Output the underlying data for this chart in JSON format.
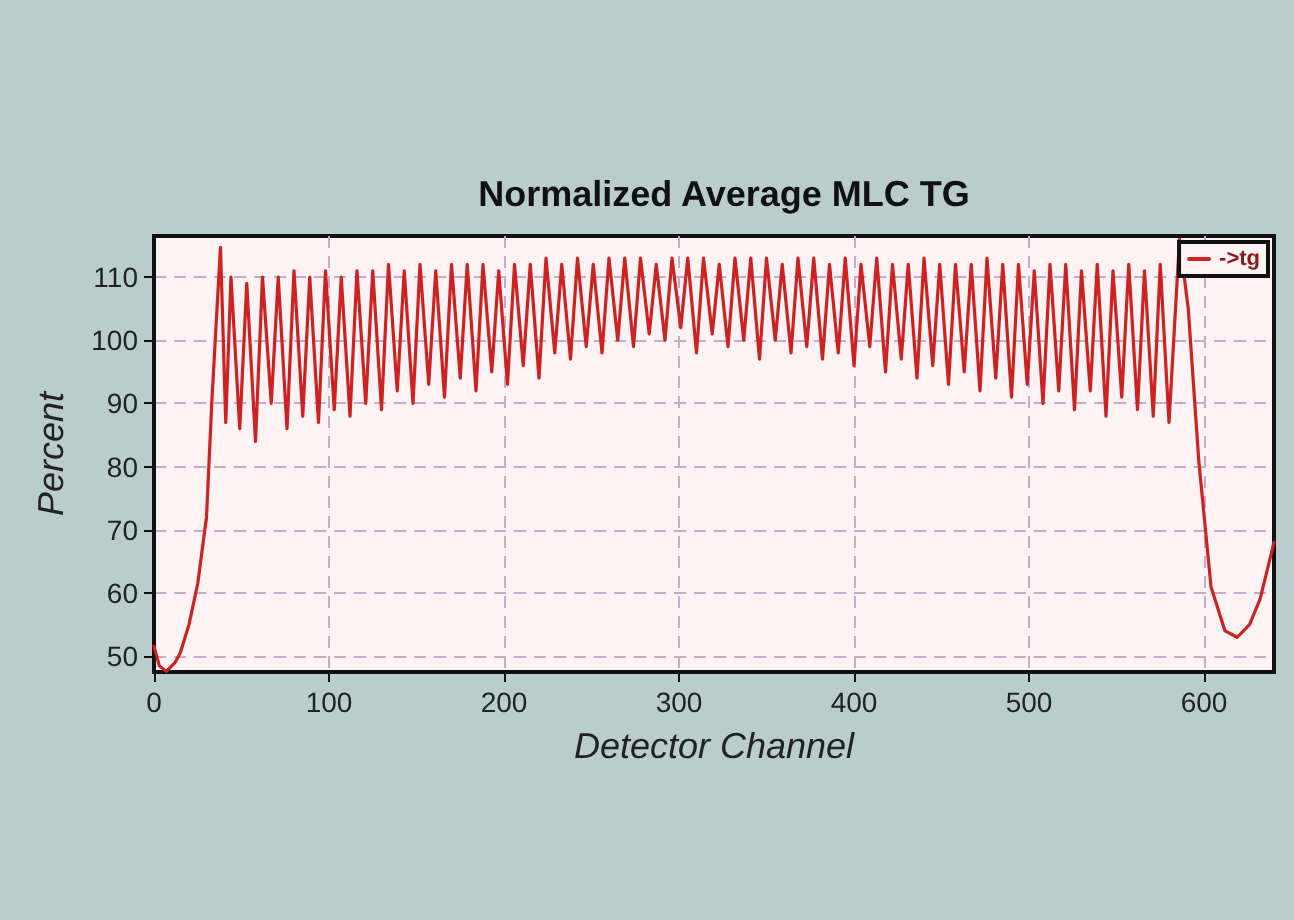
{
  "chart_data": {
    "type": "line",
    "title": "Normalized Average MLC TG",
    "xlabel": "Detector Channel",
    "ylabel": "Percent",
    "xlim": [
      0,
      640
    ],
    "xticks": [
      0,
      100,
      200,
      300,
      400,
      500,
      600
    ],
    "ylim": [
      47.5,
      116.5
    ],
    "yticks": [
      50,
      60,
      70,
      80,
      90,
      100,
      110
    ],
    "grid": true,
    "legend": "top right",
    "x": [
      0,
      3,
      7,
      12,
      15,
      20,
      25,
      30,
      33,
      36,
      38,
      41,
      44,
      49,
      53,
      58,
      62,
      67,
      71,
      76,
      80,
      85,
      89,
      94,
      98,
      103,
      107,
      112,
      116,
      121,
      125,
      130,
      134,
      139,
      143,
      148,
      152,
      157,
      161,
      166,
      170,
      175,
      179,
      184,
      188,
      193,
      197,
      202,
      206,
      211,
      215,
      220,
      224,
      229,
      233,
      238,
      242,
      247,
      251,
      256,
      260,
      265,
      269,
      274,
      278,
      283,
      287,
      292,
      296,
      301,
      305,
      310,
      314,
      319,
      323,
      328,
      332,
      337,
      341,
      346,
      350,
      355,
      359,
      364,
      368,
      373,
      377,
      382,
      386,
      391,
      395,
      400,
      404,
      409,
      413,
      418,
      422,
      427,
      431,
      436,
      440,
      445,
      449,
      454,
      458,
      463,
      467,
      472,
      476,
      481,
      485,
      490,
      494,
      499,
      503,
      508,
      512,
      517,
      521,
      526,
      530,
      535,
      539,
      544,
      548,
      553,
      557,
      562,
      566,
      571,
      575,
      580,
      586,
      591,
      597,
      604,
      612,
      619,
      626,
      632,
      640
    ],
    "series": [
      {
        "name": "->tg",
        "color": "#cc2222",
        "values": [
          51.6,
          48.5,
          47.6,
          49,
          50.5,
          55,
          61.5,
          72,
          90,
          105,
          114.7,
          87,
          110,
          86,
          109,
          84,
          110,
          90,
          110,
          86,
          111,
          88,
          110,
          87,
          111,
          89,
          110,
          88,
          111,
          90,
          111,
          89,
          112,
          92,
          111,
          90,
          112,
          93,
          111,
          91,
          112,
          94,
          112,
          92,
          112,
          95,
          111,
          93,
          112,
          96,
          112,
          94,
          113,
          98,
          112,
          97,
          113,
          99,
          112,
          98,
          113,
          100,
          113,
          99,
          113,
          101,
          112,
          100,
          113,
          102,
          113,
          98,
          113,
          101,
          112,
          99,
          113,
          100,
          113,
          97,
          113,
          100,
          112,
          98,
          113,
          99,
          113,
          97,
          112,
          98,
          113,
          96,
          112,
          99,
          113,
          95,
          112,
          97,
          112,
          94,
          113,
          96,
          112,
          93,
          112,
          95,
          112,
          92,
          113,
          94,
          112,
          91,
          112,
          93,
          111,
          90,
          112,
          92,
          112,
          89,
          111,
          92,
          112,
          88,
          111,
          91,
          112,
          89,
          111,
          88,
          112,
          87,
          116,
          105,
          81,
          61,
          54,
          53,
          55,
          59,
          68
        ]
      }
    ]
  }
}
